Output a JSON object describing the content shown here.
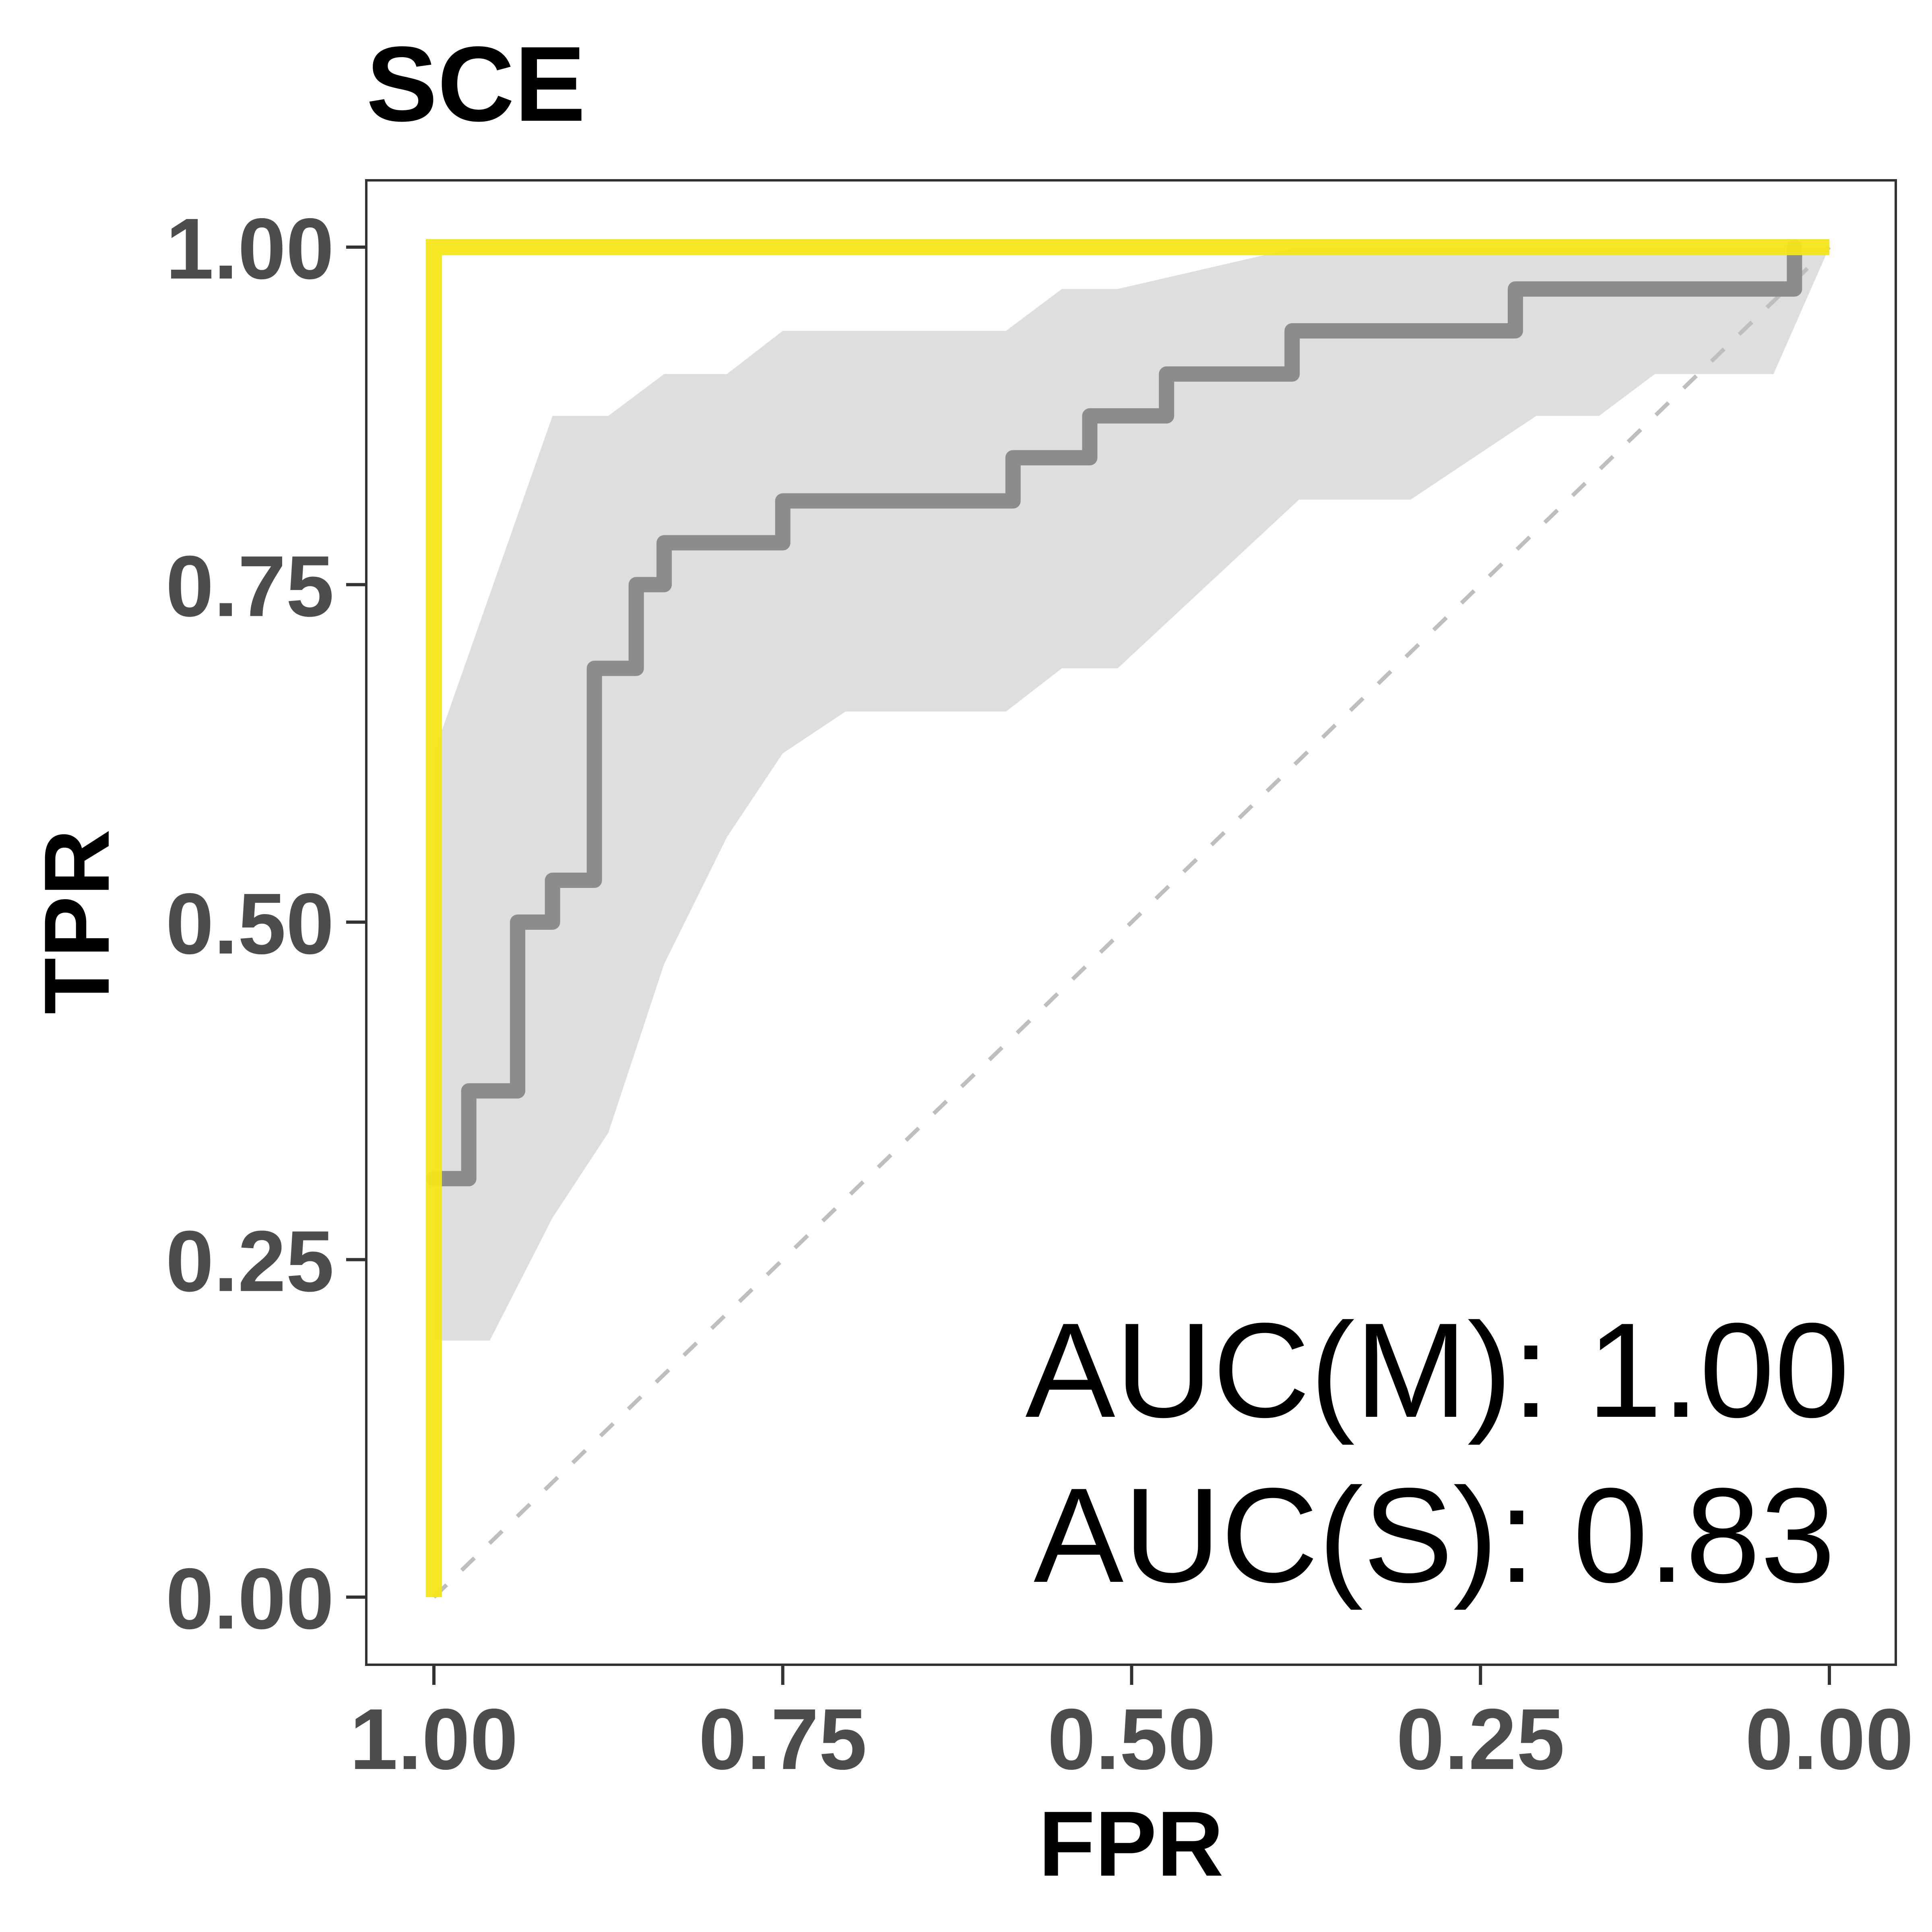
{
  "chart_data": {
    "type": "line",
    "title": "SCE",
    "xlabel": "FPR",
    "ylabel": "TPR",
    "x_reversed": true,
    "xlim": [
      1.0,
      0.0
    ],
    "ylim": [
      0.0,
      1.0
    ],
    "x_ticks": [
      1.0,
      0.75,
      0.5,
      0.25,
      0.0
    ],
    "x_tick_labels": [
      "1.00",
      "0.75",
      "0.50",
      "0.25",
      "0.00"
    ],
    "y_ticks": [
      0.0,
      0.25,
      0.5,
      0.75,
      1.0
    ],
    "y_tick_labels": [
      "0.00",
      "0.25",
      "0.50",
      "0.75",
      "1.00"
    ],
    "grid": false,
    "annotations": [
      "AUC(M): 1.00",
      "AUC(S): 0.83"
    ],
    "colors": {
      "model": "#f5e61a",
      "score": "#8c8c8c",
      "ci_band": "#dcdcdc",
      "diagonal": "#bebebe"
    },
    "series": [
      {
        "key": "model",
        "x": [
          1.0,
          1.0,
          0.0
        ],
        "y": [
          0.0,
          1.0,
          1.0
        ]
      },
      {
        "key": "score",
        "x": [
          1.0,
          0.975,
          0.975,
          0.94,
          0.94,
          0.915,
          0.915,
          0.885,
          0.885,
          0.855,
          0.855,
          0.835,
          0.835,
          0.75,
          0.75,
          0.585,
          0.585,
          0.53,
          0.53,
          0.475,
          0.475,
          0.385,
          0.385,
          0.225,
          0.225,
          0.025,
          0.025
        ],
        "y": [
          0.31,
          0.31,
          0.375,
          0.375,
          0.5,
          0.5,
          0.531,
          0.531,
          0.688,
          0.688,
          0.75,
          0.75,
          0.781,
          0.781,
          0.812,
          0.812,
          0.844,
          0.844,
          0.875,
          0.875,
          0.906,
          0.906,
          0.938,
          0.938,
          0.969,
          0.969,
          1.0
        ]
      },
      {
        "key": "ci_upper",
        "x": [
          1.0,
          0.915,
          0.875,
          0.835,
          0.79,
          0.75,
          0.59,
          0.55,
          0.51,
          0.38,
          0.3,
          0.21,
          0.165,
          0.035,
          0.0
        ],
        "y": [
          0.625,
          0.875,
          0.875,
          0.906,
          0.906,
          0.938,
          0.938,
          0.969,
          0.969,
          1.0,
          1.0,
          1.0,
          1.0,
          1.0,
          1.0
        ]
      },
      {
        "key": "ci_lower",
        "x": [
          1.0,
          0.96,
          0.915,
          0.875,
          0.835,
          0.79,
          0.75,
          0.705,
          0.59,
          0.55,
          0.51,
          0.38,
          0.3,
          0.21,
          0.165,
          0.125,
          0.04,
          0.0
        ],
        "y": [
          0.19,
          0.19,
          0.281,
          0.344,
          0.469,
          0.563,
          0.625,
          0.656,
          0.656,
          0.688,
          0.688,
          0.813,
          0.813,
          0.875,
          0.875,
          0.906,
          0.906,
          1.0
        ]
      },
      {
        "key": "diagonal",
        "x": [
          1.0,
          0.0
        ],
        "y": [
          0.0,
          1.0
        ]
      }
    ]
  }
}
